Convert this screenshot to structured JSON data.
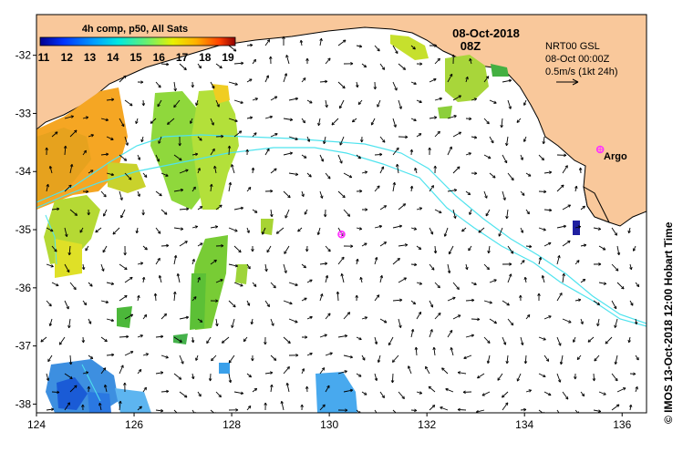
{
  "map": {
    "date": "08-Oct-2018",
    "hour": "08Z",
    "product": "4h comp, p50, All Sats",
    "vector_info": {
      "line1": "NRT00 GSL",
      "line2": "08-Oct 00:00Z",
      "line3": "0.5m/s (1kt 24h)"
    },
    "argo_label": "Argo",
    "credit": "© IMOS 13-Oct-2018 12:00 Hobart Time",
    "lon_ticks": [
      "124",
      "126",
      "128",
      "130",
      "132",
      "134",
      "136"
    ],
    "lat_ticks": [
      "-32",
      "-33",
      "-34",
      "-35",
      "-36",
      "-37",
      "-38"
    ],
    "colorbar": {
      "labels": [
        "11",
        "12",
        "13",
        "14",
        "15",
        "16",
        "17",
        "18",
        "19"
      ],
      "min": 11,
      "max": 19
    },
    "colors": {
      "land": "#f9c89b",
      "contour": "#4fe3ee",
      "argo": "#ff33ff"
    },
    "extent": {
      "lon": [
        124,
        136.5
      ],
      "lat": [
        -38.15,
        -31.3
      ]
    },
    "argo_floats": [
      {
        "lon": 130.25,
        "lat": -35.08
      },
      {
        "lon": 135.55,
        "lat": -33.62
      }
    ]
  }
}
